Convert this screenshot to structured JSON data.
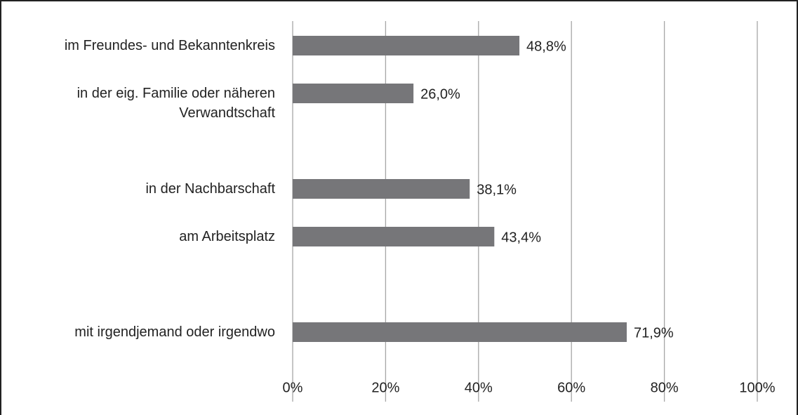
{
  "chart_data": {
    "type": "bar",
    "orientation": "horizontal",
    "categories": [
      "im Freundes- und Bekanntenkreis",
      "in der eig. Familie oder näheren Verwandtschaft",
      null,
      "in der Nachbarschaft",
      "am Arbeitsplatz",
      null,
      "mit irgendjemand oder irgendwo"
    ],
    "values": [
      48.8,
      26.0,
      null,
      38.1,
      43.4,
      null,
      71.9
    ],
    "value_labels": [
      "48,8%",
      "26,0%",
      null,
      "38,1%",
      "43,4%",
      null,
      "71,9%"
    ],
    "color": "#767679",
    "xlim": [
      0,
      100
    ],
    "xticks": [
      {
        "value": 0,
        "label": "0%"
      },
      {
        "value": 20,
        "label": "20%"
      },
      {
        "value": 40,
        "label": "40%"
      },
      {
        "value": 60,
        "label": "60%"
      },
      {
        "value": 80,
        "label": "80%"
      },
      {
        "value": 100,
        "label": "100%"
      }
    ],
    "grid": true
  }
}
